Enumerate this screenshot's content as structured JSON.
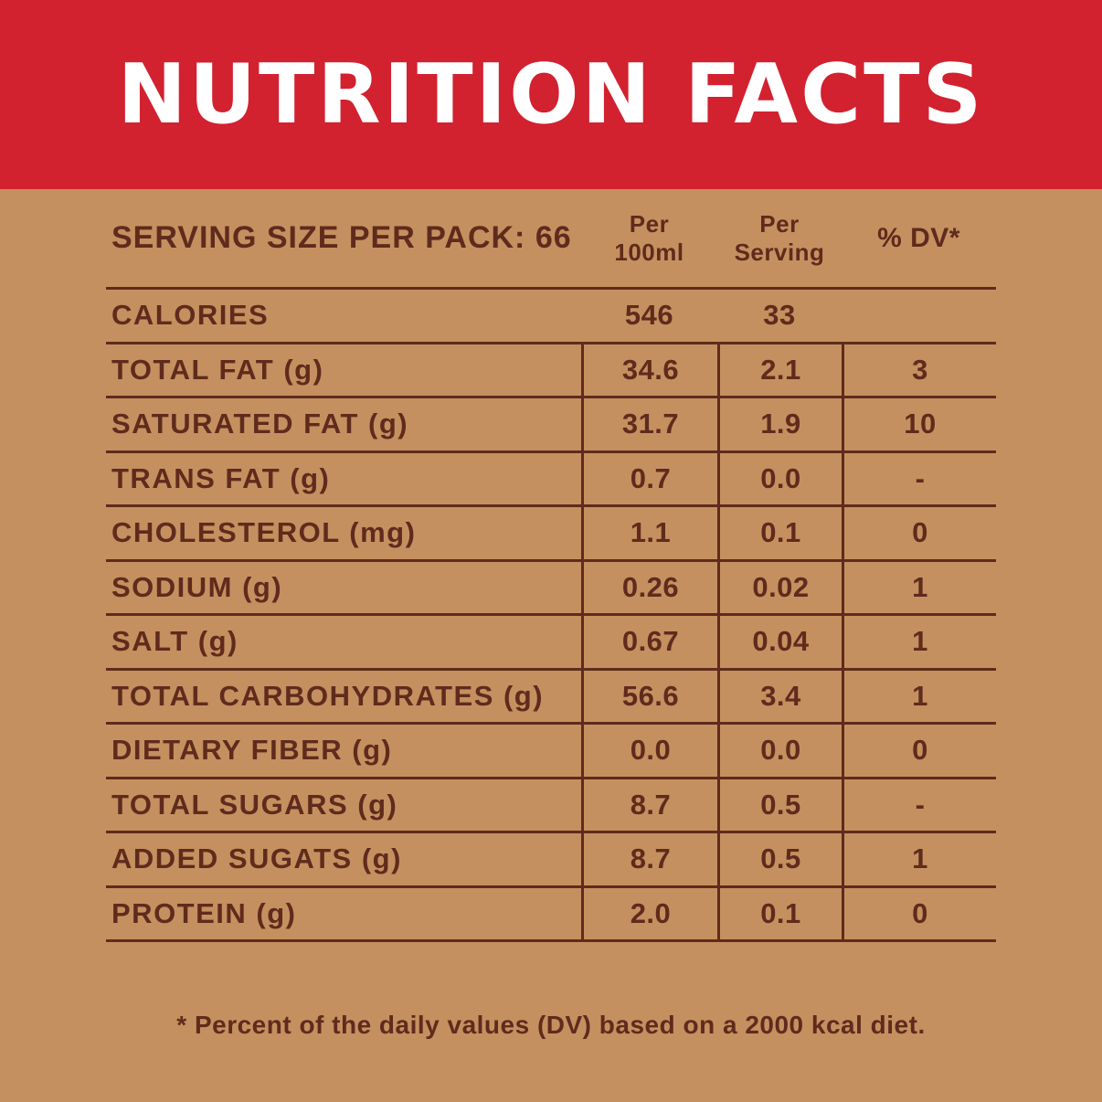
{
  "banner": {
    "title": "NUTRITION FACTS"
  },
  "table": {
    "serving_label": "SERVING SIZE PER PACK: 66",
    "columns": [
      "Per\n100ml",
      "Per\nServing",
      "% DV*"
    ],
    "rows": [
      {
        "label": "CALORIES",
        "per_100ml": "546",
        "per_serving": "33",
        "dv": "",
        "dividers": false
      },
      {
        "label": "TOTAL FAT (g)",
        "per_100ml": "34.6",
        "per_serving": "2.1",
        "dv": "3",
        "dividers": true
      },
      {
        "label": "SATURATED FAT (g)",
        "per_100ml": "31.7",
        "per_serving": "1.9",
        "dv": "10",
        "dividers": true
      },
      {
        "label": "TRANS FAT (g)",
        "per_100ml": "0.7",
        "per_serving": "0.0",
        "dv": "-",
        "dividers": true
      },
      {
        "label": "CHOLESTEROL (mg)",
        "per_100ml": "1.1",
        "per_serving": "0.1",
        "dv": "0",
        "dividers": true
      },
      {
        "label": "SODIUM (g)",
        "per_100ml": "0.26",
        "per_serving": "0.02",
        "dv": "1",
        "dividers": true
      },
      {
        "label": "SALT (g)",
        "per_100ml": "0.67",
        "per_serving": "0.04",
        "dv": "1",
        "dividers": true
      },
      {
        "label": "TOTAL CARBOHYDRATES (g)",
        "per_100ml": "56.6",
        "per_serving": "3.4",
        "dv": "1",
        "dividers": true
      },
      {
        "label": "DIETARY FIBER (g)",
        "per_100ml": "0.0",
        "per_serving": "0.0",
        "dv": "0",
        "dividers": true
      },
      {
        "label": "TOTAL SUGARS (g)",
        "per_100ml": "8.7",
        "per_serving": "0.5",
        "dv": "-",
        "dividers": true
      },
      {
        "label": "ADDED SUGATS (g)",
        "per_100ml": "8.7",
        "per_serving": "0.5",
        "dv": "1",
        "dividers": true
      },
      {
        "label": "PROTEIN (g)",
        "per_100ml": "2.0",
        "per_serving": "0.1",
        "dv": "0",
        "dividers": true
      }
    ]
  },
  "footnote": "* Percent of the daily values (DV) based on a 2000 kcal diet.",
  "colors": {
    "background": "#c5905f",
    "text": "#5e2b1d",
    "banner_background": "#d2212f",
    "banner_text": "#ffffff"
  }
}
